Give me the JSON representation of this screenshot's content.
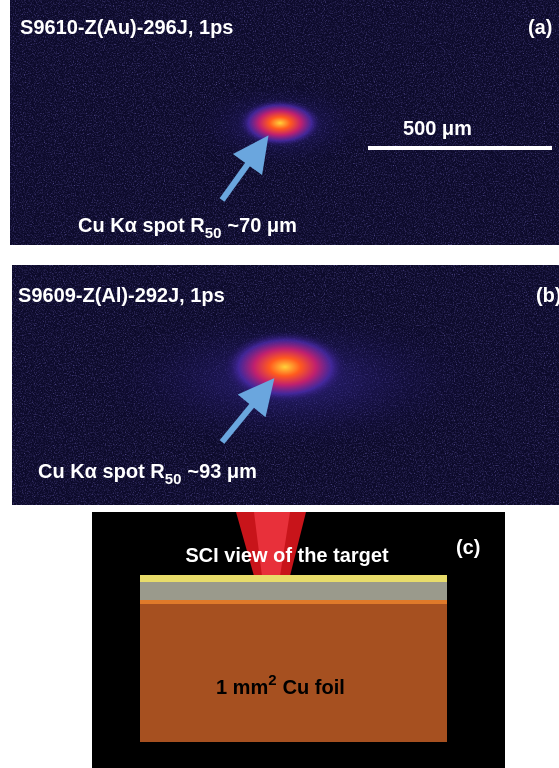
{
  "panels": [
    {
      "title": "S9610-Z(Au)-296J, 1ps",
      "label": "(a)",
      "scale_bar": "500 μm",
      "annotation": {
        "text": "Cu Kα spot R",
        "subscript": "50",
        "suffix": "~70 μm"
      }
    },
    {
      "title": "S9609-Z(Al)-292J, 1ps",
      "label": "(b)",
      "annotation": {
        "text": "Cu Kα spot R",
        "subscript": "50",
        "suffix": "~93 μm"
      }
    },
    {
      "title": "SCI view of the target",
      "label": "(c)",
      "annotation": {
        "text": "1 mm",
        "superscript": "2",
        "suffix": "Cu foil"
      }
    }
  ]
}
